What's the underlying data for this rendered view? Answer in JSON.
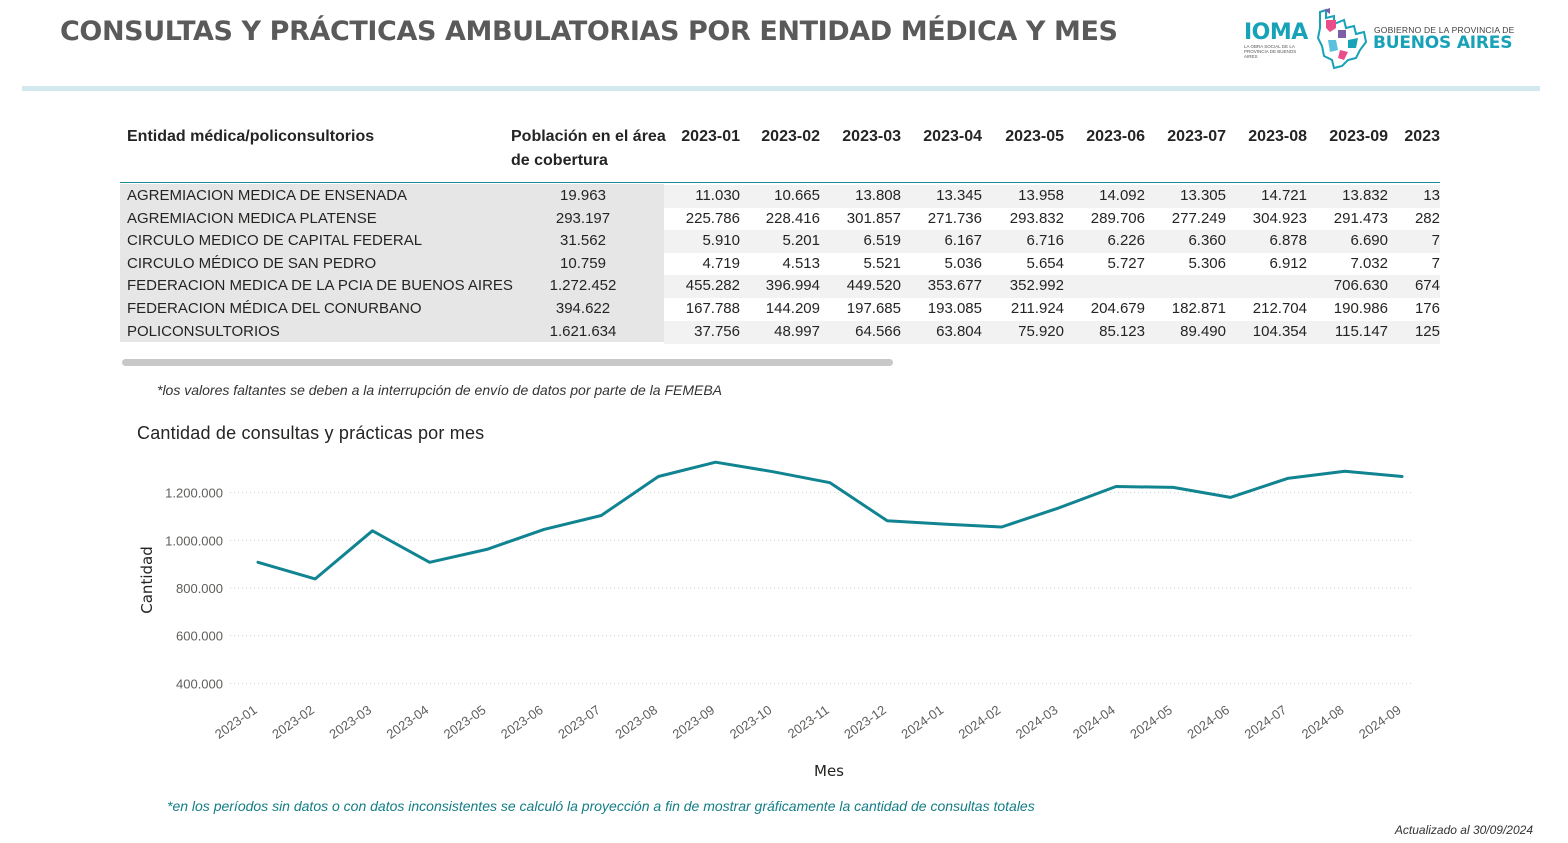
{
  "header": {
    "title": "CONSULTAS Y PRÁCTICAS AMBULATORIAS POR ENTIDAD MÉDICA Y MES",
    "ioma_logo": "IOMA",
    "ioma_subtitle": "LA OBRA SOCIAL DE LA PROVINCIA DE BUENOS AIRES",
    "gov_small": "GOBIERNO DE LA PROVINCIA DE",
    "gov_big": "BUENOS AIRES",
    "accent_color": "#17a2b8"
  },
  "table": {
    "columns": {
      "entity": "Entidad médica/policonsultorios",
      "population": "Población en el área de cobertura",
      "months": [
        "2023-01",
        "2023-02",
        "2023-03",
        "2023-04",
        "2023-05",
        "2023-06",
        "2023-07",
        "2023-08",
        "2023-09",
        "2023"
      ]
    },
    "rows": [
      {
        "entity": "AGREMIACION MEDICA DE ENSENADA",
        "population": "19.963",
        "values": [
          "11.030",
          "10.665",
          "13.808",
          "13.345",
          "13.958",
          "14.092",
          "13.305",
          "14.721",
          "13.832",
          "13"
        ]
      },
      {
        "entity": "AGREMIACION MEDICA PLATENSE",
        "population": "293.197",
        "values": [
          "225.786",
          "228.416",
          "301.857",
          "271.736",
          "293.832",
          "289.706",
          "277.249",
          "304.923",
          "291.473",
          "282"
        ]
      },
      {
        "entity": "CIRCULO MEDICO DE CAPITAL FEDERAL",
        "population": "31.562",
        "values": [
          "5.910",
          "5.201",
          "6.519",
          "6.167",
          "6.716",
          "6.226",
          "6.360",
          "6.878",
          "6.690",
          "7"
        ]
      },
      {
        "entity": "CIRCULO MÉDICO DE SAN PEDRO",
        "population": "10.759",
        "values": [
          "4.719",
          "4.513",
          "5.521",
          "5.036",
          "5.654",
          "5.727",
          "5.306",
          "6.912",
          "7.032",
          "7"
        ]
      },
      {
        "entity": "FEDERACION MEDICA DE LA PCIA DE BUENOS AIRES",
        "population": "1.272.452",
        "values": [
          "455.282",
          "396.994",
          "449.520",
          "353.677",
          "352.992",
          "",
          "",
          "",
          "706.630",
          "674"
        ]
      },
      {
        "entity": "FEDERACION MÉDICA DEL CONURBANO",
        "population": "394.622",
        "values": [
          "167.788",
          "144.209",
          "197.685",
          "193.085",
          "211.924",
          "204.679",
          "182.871",
          "212.704",
          "190.986",
          "176"
        ]
      },
      {
        "entity": "POLICONSULTORIOS",
        "population": "1.621.634",
        "values": [
          "37.756",
          "48.997",
          "64.566",
          "63.804",
          "75.920",
          "85.123",
          "89.490",
          "104.354",
          "115.147",
          "125"
        ]
      }
    ]
  },
  "notes": {
    "missing": "*los valores faltantes se deben a la interrupción de envío de datos por parte de la FEMEBA",
    "projection": "*en los períodos sin datos o con datos inconsistentes se calculó la proyección a fin de mostrar gráficamente la cantidad de consultas totales",
    "updated": "Actualizado al 30/09/2024"
  },
  "chart_data": {
    "type": "line",
    "title": "Cantidad de consultas y prácticas por mes",
    "xlabel": "Mes",
    "ylabel": "Cantidad",
    "ylim": [
      330000,
      1400000
    ],
    "yticks": [
      400000,
      600000,
      800000,
      1000000,
      1200000
    ],
    "ytick_labels": [
      "400.000",
      "600.000",
      "800.000",
      "1.000.000",
      "1.200.000"
    ],
    "grid": "horizontal dotted",
    "line_color": "#118491",
    "x": [
      "2023-01",
      "2023-02",
      "2023-03",
      "2023-04",
      "2023-05",
      "2023-06",
      "2023-07",
      "2023-08",
      "2023-09",
      "2023-10",
      "2023-11",
      "2023-12",
      "2024-01",
      "2024-02",
      "2024-03",
      "2024-04",
      "2024-05",
      "2024-06",
      "2024-07",
      "2024-08",
      "2024-09"
    ],
    "series": [
      {
        "values": [
          908000,
          838000,
          1040000,
          908000,
          962000,
          1046000,
          1104000,
          1268000,
          1328000,
          1288000,
          1242000,
          1082000,
          1068000,
          1056000,
          1136000,
          1226000,
          1222000,
          1180000,
          1260000,
          1290000,
          1268000
        ]
      }
    ]
  }
}
